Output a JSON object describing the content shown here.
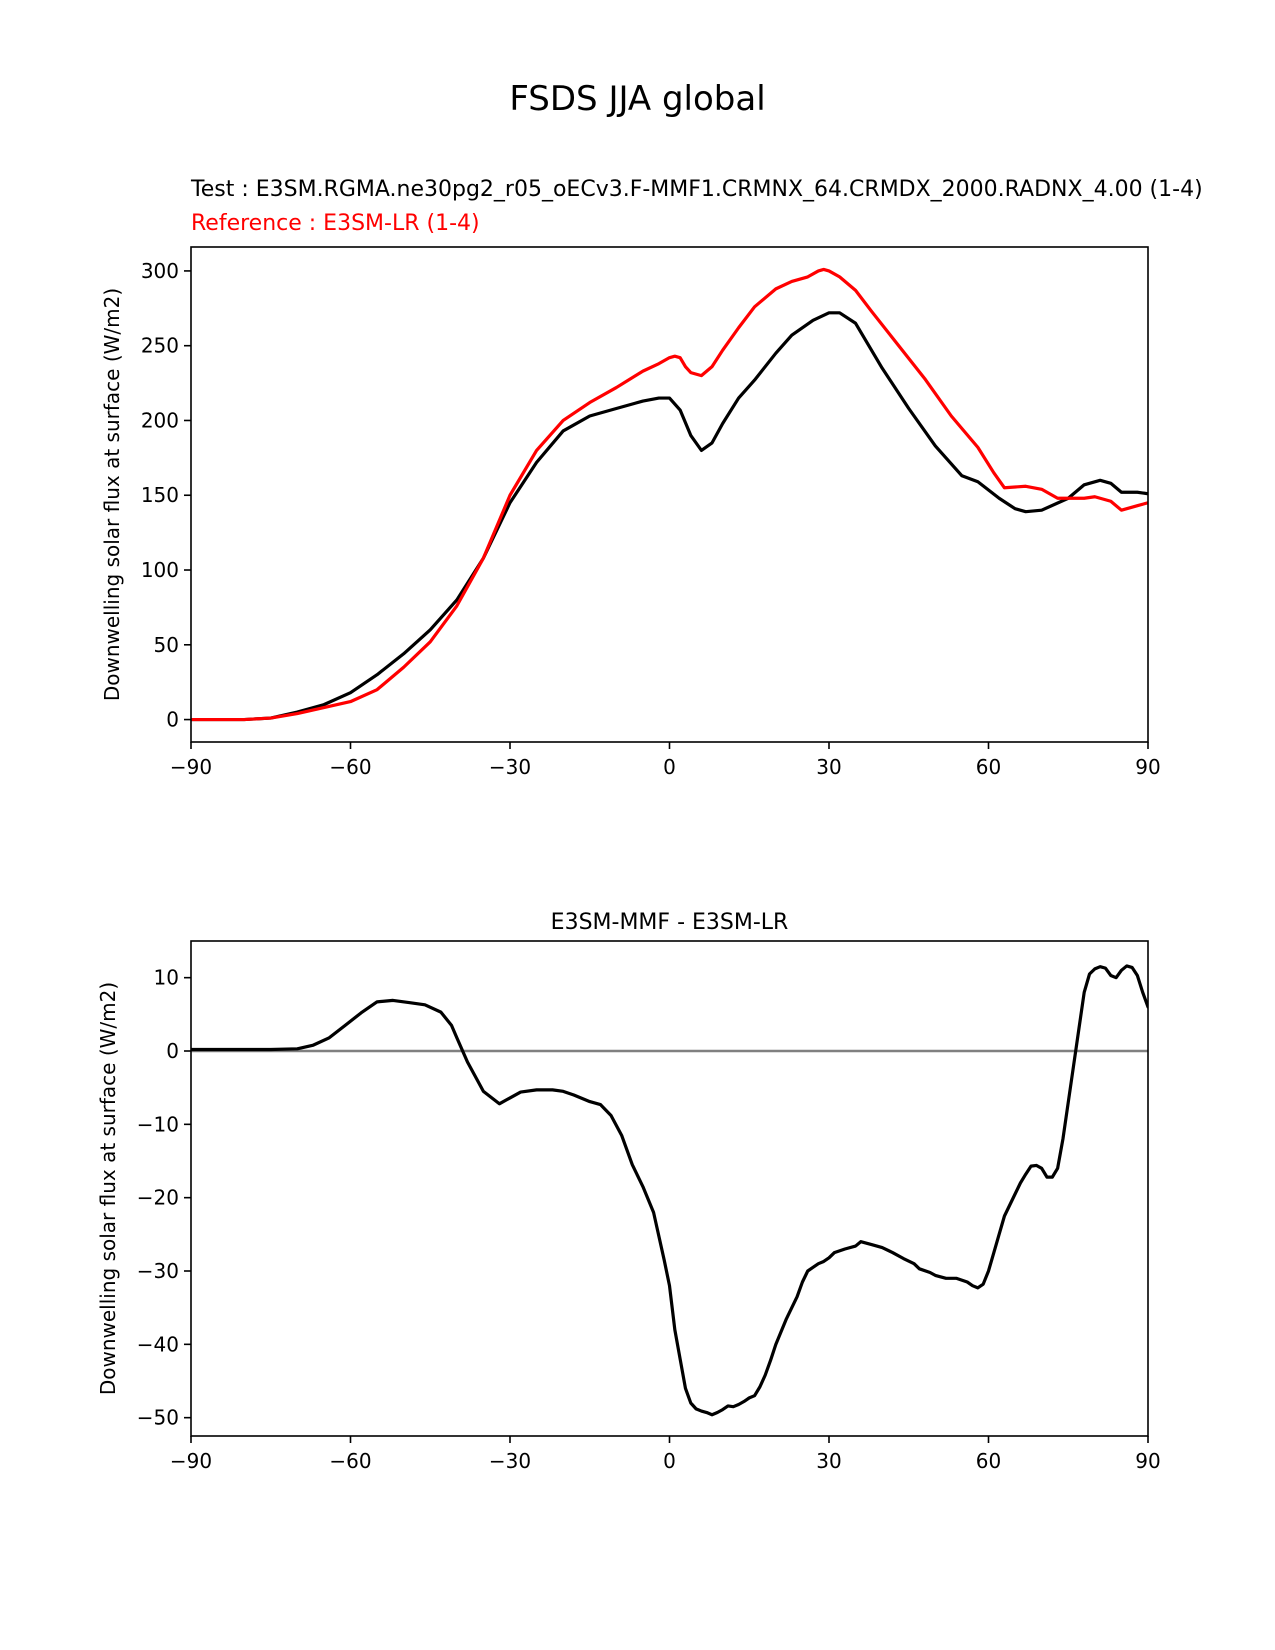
{
  "figure": {
    "title": "FSDS JJA global",
    "test_label": "Test : E3SM.RGMA.ne30pg2_r05_oECv3.F-MMF1.CRMNX_64.CRMDX_2000.RADNX_4.00 (1-4)",
    "reference_label": "Reference : E3SM-LR (1-4)"
  },
  "colors": {
    "test": "#000000",
    "reference": "#ff0000",
    "zero_line": "#808080",
    "axes": "#000000"
  },
  "chart_data": [
    {
      "type": "line",
      "title": "",
      "xlabel": "",
      "ylabel": "Downwelling solar flux at surface (W/m2)",
      "xlim": [
        -90,
        90
      ],
      "ylim": [
        -15,
        316
      ],
      "xticks": [
        -90,
        -60,
        -30,
        0,
        30,
        60,
        90
      ],
      "xtick_labels": [
        "−90",
        "−60",
        "−30",
        "0",
        "30",
        "60",
        "90"
      ],
      "yticks": [
        0,
        50,
        100,
        150,
        200,
        250,
        300
      ],
      "ytick_labels": [
        "0",
        "50",
        "100",
        "150",
        "200",
        "250",
        "300"
      ],
      "series": [
        {
          "name": "Test",
          "color": "#000000",
          "x": [
            -90,
            -80,
            -75,
            -70,
            -65,
            -60,
            -55,
            -50,
            -45,
            -40,
            -35,
            -30,
            -25,
            -20,
            -15,
            -10,
            -5,
            -2,
            0,
            2,
            4,
            6,
            8,
            10,
            13,
            16,
            20,
            23,
            27,
            30,
            32,
            35,
            40,
            45,
            50,
            55,
            58,
            62,
            65,
            67,
            70,
            75,
            78,
            81,
            83,
            85,
            88,
            90
          ],
          "y": [
            0,
            0,
            1,
            5,
            10,
            18,
            30,
            44,
            60,
            80,
            108,
            145,
            172,
            193,
            203,
            208,
            213,
            215,
            215,
            207,
            190,
            180,
            185,
            198,
            215,
            227,
            245,
            257,
            267,
            272,
            272,
            265,
            235,
            208,
            183,
            163,
            159,
            148,
            141,
            139,
            140,
            148,
            157,
            160,
            158,
            152,
            152,
            151
          ]
        },
        {
          "name": "Reference",
          "color": "#ff0000",
          "x": [
            -90,
            -80,
            -75,
            -70,
            -65,
            -60,
            -55,
            -50,
            -45,
            -40,
            -35,
            -30,
            -25,
            -20,
            -15,
            -10,
            -5,
            -2,
            0,
            1,
            2,
            3,
            4,
            6,
            8,
            10,
            13,
            16,
            20,
            23,
            26,
            28,
            29,
            30,
            32,
            35,
            38,
            42,
            48,
            53,
            58,
            61,
            63,
            67,
            70,
            73,
            75,
            78,
            80,
            83,
            85,
            88,
            90
          ],
          "y": [
            0,
            0,
            1,
            4,
            8,
            12,
            20,
            35,
            52,
            76,
            108,
            150,
            180,
            200,
            212,
            222,
            233,
            238,
            242,
            243,
            242,
            236,
            232,
            230,
            236,
            247,
            262,
            276,
            288,
            293,
            296,
            300,
            301,
            300,
            296,
            287,
            273,
            255,
            228,
            203,
            182,
            165,
            155,
            156,
            154,
            148,
            148,
            148,
            149,
            146,
            140,
            143,
            145
          ]
        }
      ]
    },
    {
      "type": "line",
      "title": "E3SM-MMF - E3SM-LR",
      "xlabel": "",
      "ylabel": "Downwelling solar flux at surface (W/m2)",
      "xlim": [
        -90,
        90
      ],
      "ylim": [
        -52.5,
        15
      ],
      "xticks": [
        -90,
        -60,
        -30,
        0,
        30,
        60,
        90
      ],
      "xtick_labels": [
        "−90",
        "−60",
        "−30",
        "0",
        "30",
        "60",
        "90"
      ],
      "yticks": [
        -50,
        -40,
        -30,
        -20,
        -10,
        0,
        10
      ],
      "ytick_labels": [
        "−50",
        "−40",
        "−30",
        "−20",
        "−10",
        "0",
        "10"
      ],
      "reference_line": 0,
      "series": [
        {
          "name": "E3SM-MMF - E3SM-LR",
          "color": "#000000",
          "x": [
            -90,
            -80,
            -75,
            -70,
            -67,
            -64,
            -61,
            -58,
            -55,
            -52,
            -49,
            -46,
            -43,
            -41,
            -40,
            -38,
            -35,
            -32,
            -30,
            -28,
            -25,
            -22,
            -20,
            -18,
            -15,
            -13,
            -11,
            -9,
            -7,
            -5,
            -3,
            -1,
            0,
            1,
            2,
            3,
            4,
            5,
            6,
            7,
            8,
            9,
            10,
            11,
            12,
            13,
            14,
            15,
            16,
            17,
            18,
            19,
            20,
            22,
            24,
            25,
            26,
            27,
            28,
            29,
            30,
            31,
            33,
            35,
            36,
            38,
            40,
            42,
            44,
            46,
            47,
            49,
            50,
            52,
            54,
            56,
            57,
            58,
            59,
            60,
            61,
            62,
            63,
            64,
            65,
            66,
            67,
            68,
            69,
            70,
            71,
            72,
            73,
            74,
            75,
            76,
            77,
            78,
            79,
            80,
            81,
            82,
            83,
            84,
            85,
            86,
            87,
            88,
            89,
            90
          ],
          "y": [
            0.2,
            0.2,
            0.2,
            0.3,
            0.8,
            1.8,
            3.5,
            5.2,
            6.7,
            6.9,
            6.6,
            6.3,
            5.3,
            3.5,
            1.8,
            -1.5,
            -5.5,
            -7.2,
            -6.4,
            -5.6,
            -5.3,
            -5.3,
            -5.5,
            -6.0,
            -6.9,
            -7.3,
            -8.8,
            -11.5,
            -15.5,
            -18.5,
            -22.0,
            -28.5,
            -32.0,
            -38.0,
            -42.0,
            -46.0,
            -48.0,
            -48.8,
            -49.1,
            -49.3,
            -49.6,
            -49.3,
            -48.9,
            -48.4,
            -48.5,
            -48.2,
            -47.8,
            -47.3,
            -47.0,
            -45.8,
            -44.2,
            -42.2,
            -40.0,
            -36.5,
            -33.5,
            -31.5,
            -30.0,
            -29.5,
            -29.0,
            -28.7,
            -28.2,
            -27.5,
            -27.0,
            -26.6,
            -26.0,
            -26.4,
            -26.8,
            -27.5,
            -28.3,
            -29.0,
            -29.7,
            -30.2,
            -30.6,
            -31.0,
            -31.0,
            -31.5,
            -32.0,
            -32.3,
            -31.8,
            -30.0,
            -27.5,
            -25.0,
            -22.5,
            -21.0,
            -19.5,
            -18.0,
            -16.8,
            -15.7,
            -15.6,
            -16.0,
            -17.2,
            -17.2,
            -16.0,
            -12.0,
            -7.0,
            -2.0,
            3.0,
            8.0,
            10.5,
            11.2,
            11.5,
            11.3,
            10.3,
            10.0,
            11.0,
            11.6,
            11.4,
            10.3,
            8.0,
            6.0
          ]
        }
      ]
    }
  ]
}
